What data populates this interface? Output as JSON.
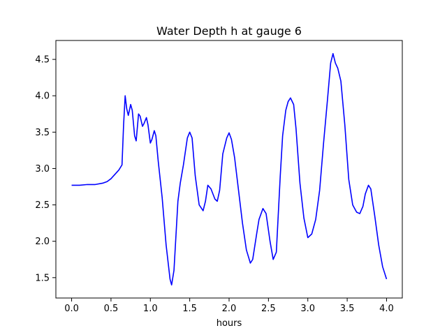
{
  "chart_data": {
    "type": "line",
    "title": "Water Depth h at gauge 6",
    "xlabel": "hours",
    "ylabel": "",
    "xlim": [
      -0.2,
      4.2
    ],
    "ylim": [
      1.22,
      4.76
    ],
    "xticks": [
      0.0,
      0.5,
      1.0,
      1.5,
      2.0,
      2.5,
      3.0,
      3.5,
      4.0
    ],
    "xtick_labels": [
      "0.0",
      "0.5",
      "1.0",
      "1.5",
      "2.0",
      "2.5",
      "3.0",
      "3.5",
      "4.0"
    ],
    "yticks": [
      1.5,
      2.0,
      2.5,
      3.0,
      3.5,
      4.0,
      4.5
    ],
    "ytick_labels": [
      "1.5",
      "2.0",
      "2.5",
      "3.0",
      "3.5",
      "4.0",
      "4.5"
    ],
    "grid": false,
    "color": "#0000ff",
    "series": [
      {
        "name": "",
        "x": [
          0.0,
          0.1,
          0.2,
          0.3,
          0.4,
          0.45,
          0.5,
          0.55,
          0.6,
          0.64,
          0.66,
          0.68,
          0.7,
          0.72,
          0.75,
          0.77,
          0.8,
          0.82,
          0.85,
          0.87,
          0.9,
          0.92,
          0.95,
          0.97,
          1.0,
          1.02,
          1.05,
          1.07,
          1.1,
          1.15,
          1.2,
          1.25,
          1.27,
          1.3,
          1.35,
          1.38,
          1.42,
          1.47,
          1.5,
          1.53,
          1.57,
          1.62,
          1.67,
          1.7,
          1.73,
          1.77,
          1.82,
          1.85,
          1.88,
          1.92,
          1.97,
          2.0,
          2.03,
          2.07,
          2.12,
          2.17,
          2.22,
          2.27,
          2.3,
          2.35,
          2.38,
          2.43,
          2.47,
          2.52,
          2.56,
          2.6,
          2.65,
          2.68,
          2.72,
          2.75,
          2.78,
          2.82,
          2.85,
          2.9,
          2.95,
          3.0,
          3.05,
          3.1,
          3.15,
          3.2,
          3.25,
          3.29,
          3.32,
          3.35,
          3.38,
          3.42,
          3.47,
          3.52,
          3.57,
          3.62,
          3.66,
          3.7,
          3.73,
          3.77,
          3.8,
          3.85,
          3.9,
          3.95,
          4.0
        ],
        "y": [
          2.77,
          2.77,
          2.78,
          2.78,
          2.8,
          2.82,
          2.86,
          2.92,
          2.98,
          3.05,
          3.6,
          4.0,
          3.82,
          3.73,
          3.88,
          3.8,
          3.45,
          3.38,
          3.75,
          3.72,
          3.58,
          3.62,
          3.7,
          3.6,
          3.35,
          3.4,
          3.52,
          3.45,
          3.1,
          2.6,
          1.95,
          1.48,
          1.4,
          1.6,
          2.55,
          2.8,
          3.05,
          3.42,
          3.5,
          3.42,
          2.9,
          2.5,
          2.42,
          2.55,
          2.77,
          2.72,
          2.58,
          2.55,
          2.7,
          3.2,
          3.42,
          3.49,
          3.4,
          3.15,
          2.7,
          2.25,
          1.88,
          1.7,
          1.75,
          2.1,
          2.3,
          2.45,
          2.38,
          2.0,
          1.75,
          1.85,
          2.9,
          3.45,
          3.8,
          3.92,
          3.97,
          3.88,
          3.55,
          2.8,
          2.32,
          2.05,
          2.1,
          2.3,
          2.7,
          3.35,
          3.95,
          4.45,
          4.58,
          4.45,
          4.38,
          4.2,
          3.6,
          2.85,
          2.5,
          2.4,
          2.38,
          2.48,
          2.65,
          2.77,
          2.72,
          2.35,
          1.95,
          1.65,
          1.48
        ]
      }
    ]
  }
}
